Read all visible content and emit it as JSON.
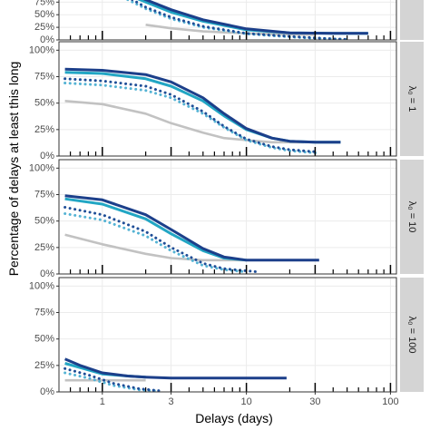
{
  "chart_data": {
    "type": "line",
    "xlabel": "Delays (days)",
    "ylabel": "Percentage of delays at least this long",
    "x_scale": "log",
    "xlim": [
      0.5,
      110
    ],
    "x_ticks": [
      1,
      3,
      10,
      30,
      100
    ],
    "y_ticks": [
      0,
      25,
      50,
      75,
      100
    ],
    "y_tick_labels": [
      "0%",
      "25%",
      "50%",
      "75%",
      "100%"
    ],
    "ylim": [
      0,
      108
    ],
    "grid": true,
    "legend": "none",
    "colors": {
      "navy": "#1c3f8a",
      "teal": "#22a6c4",
      "dotted_navy": "#1f4e97",
      "dotted_teal": "#55b3d4",
      "grey": "#c2c2c2",
      "strip": "#d4d4d4",
      "panel_border": "#333333",
      "gridline": "#ebebeb"
    },
    "panels": [
      {
        "strip_label": "",
        "clipped_top": true,
        "series": [
          {
            "style": "navy-solid",
            "x": [
              1.5,
              2,
              3,
              5,
              10,
              20,
              40,
              70
            ],
            "y": [
              95,
              80,
              60,
              40,
              22,
              14,
              13,
              13
            ]
          },
          {
            "style": "teal-solid",
            "x": [
              1.5,
              2,
              3,
              5,
              10,
              20,
              40,
              70
            ],
            "y": [
              90,
              75,
              55,
              37,
              20,
              14,
              13,
              13
            ]
          },
          {
            "style": "navy-dotted",
            "x": [
              1.5,
              2,
              3,
              5,
              10,
              20,
              30,
              40,
              50
            ],
            "y": [
              85,
              65,
              45,
              27,
              13,
              7,
              4,
              2,
              1
            ]
          },
          {
            "style": "teal-dotted",
            "x": [
              1.5,
              2,
              3,
              5,
              10,
              20,
              30,
              40,
              50
            ],
            "y": [
              80,
              62,
              42,
              25,
              12,
              6,
              3,
              2,
              1
            ]
          },
          {
            "style": "grey-solid",
            "x": [
              2,
              3,
              5,
              10,
              20,
              30
            ],
            "y": [
              30,
              23,
              17,
              13,
              11,
              10
            ]
          }
        ]
      },
      {
        "strip_label": "λ₀ = 1",
        "series": [
          {
            "style": "navy-solid",
            "x": [
              0.55,
              1,
              2,
              3,
              5,
              7,
              10,
              15,
              20,
              30,
              45
            ],
            "y": [
              82,
              81,
              77,
              70,
              55,
              40,
              26,
              17,
              14,
              13,
              13
            ]
          },
          {
            "style": "teal-solid",
            "x": [
              0.55,
              1,
              2,
              3,
              5,
              7,
              10,
              15,
              20,
              30,
              45
            ],
            "y": [
              79,
              78,
              73,
              66,
              52,
              38,
              25,
              17,
              14,
              13,
              13
            ]
          },
          {
            "style": "navy-dotted",
            "x": [
              0.55,
              1,
              2,
              3,
              5,
              7,
              10,
              15,
              20,
              30
            ],
            "y": [
              73,
              71,
              66,
              58,
              42,
              28,
              16,
              9,
              6,
              4
            ]
          },
          {
            "style": "teal-dotted",
            "x": [
              0.55,
              1,
              2,
              3,
              5,
              7,
              10,
              15,
              20,
              30
            ],
            "y": [
              69,
              67,
              62,
              55,
              40,
              27,
              15,
              8,
              5,
              3
            ]
          },
          {
            "style": "grey-solid",
            "x": [
              0.55,
              1,
              2,
              3,
              5,
              7,
              10,
              15,
              20,
              25
            ],
            "y": [
              52,
              49,
              40,
              31,
              22,
              17,
              15,
              13,
              13,
              13
            ]
          }
        ]
      },
      {
        "strip_label": "λ₀ = 10",
        "series": [
          {
            "style": "navy-solid",
            "x": [
              0.55,
              1,
              2,
              3,
              5,
              7,
              10,
              20,
              32
            ],
            "y": [
              74,
              70,
              56,
              42,
              24,
              16,
              13,
              13,
              13
            ]
          },
          {
            "style": "teal-solid",
            "x": [
              0.55,
              1,
              2,
              3,
              5,
              7,
              10
            ],
            "y": [
              71,
              66,
              52,
              38,
              22,
              15,
              13
            ]
          },
          {
            "style": "navy-dotted",
            "x": [
              0.55,
              1,
              2,
              3,
              5,
              7,
              10,
              12
            ],
            "y": [
              63,
              56,
              40,
              25,
              10,
              5,
              3,
              2
            ]
          },
          {
            "style": "teal-dotted",
            "x": [
              0.55,
              1,
              2,
              3,
              5,
              7,
              10
            ],
            "y": [
              57,
              51,
              36,
              22,
              8,
              4,
              2
            ]
          },
          {
            "style": "grey-solid",
            "x": [
              0.55,
              1,
              2,
              3,
              5,
              7,
              10
            ],
            "y": [
              37,
              28,
              19,
              15,
              13,
              13,
              13
            ]
          }
        ]
      },
      {
        "strip_label": "λ₀ = 100",
        "series": [
          {
            "style": "navy-solid",
            "x": [
              0.55,
              0.7,
              1,
              1.5,
              2,
              3,
              5,
              10,
              19
            ],
            "y": [
              31,
              25,
              18,
              15,
              14,
              13,
              13,
              13,
              13
            ]
          },
          {
            "style": "teal-solid",
            "x": [
              0.55,
              0.7,
              1,
              1.5,
              2
            ],
            "y": [
              27,
              23,
              17,
              15,
              14
            ]
          },
          {
            "style": "navy-dotted",
            "x": [
              0.55,
              0.8,
              1.2,
              1.8,
              2.5
            ],
            "y": [
              22,
              16,
              8,
              3,
              1
            ]
          },
          {
            "style": "teal-dotted",
            "x": [
              0.55,
              0.8,
              1.2,
              1.8,
              2.3
            ],
            "y": [
              18,
              13,
              6,
              2,
              1
            ]
          },
          {
            "style": "grey-solid",
            "x": [
              0.55,
              1,
              1.5,
              2
            ],
            "y": [
              11,
              11,
              11,
              11
            ]
          }
        ]
      }
    ]
  }
}
